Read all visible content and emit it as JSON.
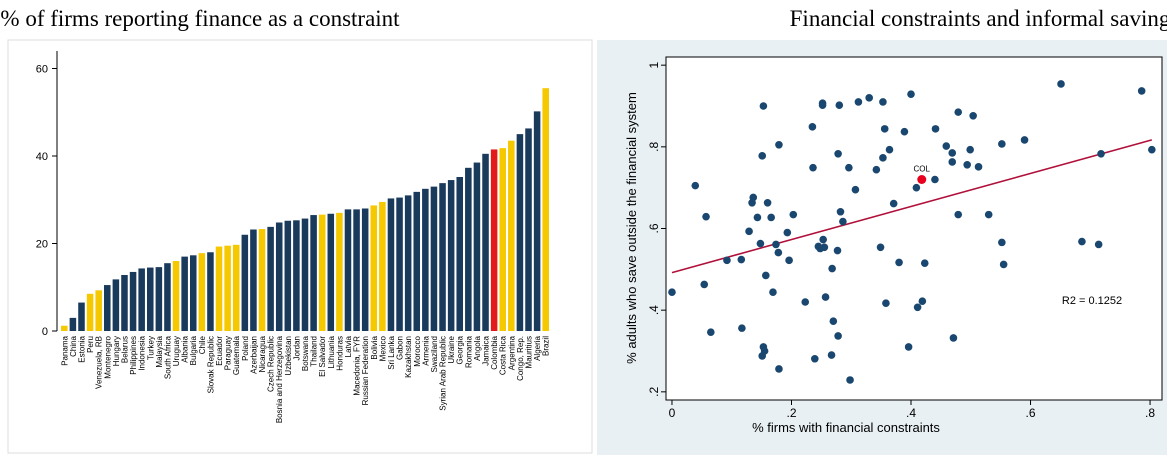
{
  "chart_data": [
    {
      "type": "bar",
      "title": "% of firms reporting finance as a constraint",
      "categories": [
        "Panama",
        "China",
        "Estonia",
        "Peru",
        "Venezuela, RB",
        "Montenegro",
        "Hungary",
        "Belarus",
        "Philippines",
        "Indonesia",
        "Turkey",
        "Malaysia",
        "South Africa",
        "Uruguay",
        "Albania",
        "Bulgaria",
        "Chile",
        "Slovak Republic",
        "Ecuador",
        "Paraguay",
        "Guatemala",
        "Poland",
        "Azerbaijan",
        "Nicaragua",
        "Czech Republic",
        "Bosnia and Herzegovina",
        "Uzbekistan",
        "Jordan",
        "Botswana",
        "Thailand",
        "El Salvador",
        "Lithuania",
        "Honduras",
        "Latvia",
        "Macedonia, FYR",
        "Russian Federation",
        "Bolivia",
        "Mexico",
        "Sri Lanka",
        "Gabon",
        "Kazakhstan",
        "Morocco",
        "Armenia",
        "Swaziland",
        "Syrian Arab Republic",
        "Ukraine",
        "Georgia",
        "Romania",
        "Angola",
        "Jamaica",
        "Colombia",
        "Costa Rica",
        "Argentina",
        "Congo, Rep.",
        "Mauritius",
        "Algeria",
        "Brazil"
      ],
      "values": [
        1.2,
        3,
        6.5,
        8.5,
        9.3,
        10.5,
        11.8,
        12.8,
        13.5,
        14.3,
        14.5,
        14.6,
        15.5,
        16,
        17,
        17.3,
        17.8,
        18,
        19.3,
        19.5,
        19.7,
        22,
        23.2,
        23.3,
        23.8,
        24.8,
        25.2,
        25.3,
        25.7,
        26.5,
        26.6,
        26.8,
        27,
        27.8,
        27.8,
        28,
        28.7,
        29.5,
        30.3,
        30.5,
        31,
        31.8,
        32.5,
        33,
        33.8,
        34.5,
        35.2,
        37.3,
        38.5,
        40.5,
        41.5,
        41.8,
        43.5,
        45,
        46.3,
        50.2,
        55.5
      ],
      "colors": [
        "#f5c800",
        "#1a3a5c",
        "#1a3a5c",
        "#f5c800",
        "#f5c800",
        "#1a3a5c",
        "#1a3a5c",
        "#1a3a5c",
        "#1a3a5c",
        "#1a3a5c",
        "#1a3a5c",
        "#1a3a5c",
        "#1a3a5c",
        "#f5c800",
        "#1a3a5c",
        "#1a3a5c",
        "#f5c800",
        "#1a3a5c",
        "#f5c800",
        "#f5c800",
        "#f5c800",
        "#1a3a5c",
        "#1a3a5c",
        "#f5c800",
        "#1a3a5c",
        "#1a3a5c",
        "#1a3a5c",
        "#1a3a5c",
        "#1a3a5c",
        "#1a3a5c",
        "#f5c800",
        "#1a3a5c",
        "#f5c800",
        "#1a3a5c",
        "#1a3a5c",
        "#1a3a5c",
        "#f5c800",
        "#f5c800",
        "#1a3a5c",
        "#1a3a5c",
        "#1a3a5c",
        "#1a3a5c",
        "#1a3a5c",
        "#1a3a5c",
        "#1a3a5c",
        "#1a3a5c",
        "#1a3a5c",
        "#1a3a5c",
        "#1a3a5c",
        "#1a3a5c",
        "#e31a1c",
        "#f5c800",
        "#f5c800",
        "#1a3a5c",
        "#1a3a5c",
        "#1a3a5c",
        "#f5c800"
      ],
      "ylim": [
        0,
        64
      ],
      "yticks": [
        0,
        20,
        40,
        60
      ]
    },
    {
      "type": "scatter",
      "title": "Financial constraints and informal saving",
      "x_label": "% firms with financial constraints",
      "y_label": "% adults who save outside the financial system",
      "series": [
        {
          "color": "#1a476f",
          "x": [
            0,
            0.054,
            0.065,
            0.039,
            0.092,
            0.057,
            0.116,
            0.117,
            0.129,
            0.134,
            0.136,
            0.143,
            0.151,
            0.148,
            0.153,
            0.155,
            0.151,
            0.153,
            0.157,
            0.16,
            0.166,
            0.169,
            0.174,
            0.178,
            0.179,
            0.179,
            0.193,
            0.196,
            0.203,
            0.223,
            0.235,
            0.236,
            0.239,
            0.245,
            0.248,
            0.252,
            0.252,
            0.253,
            0.255,
            0.257,
            0.267,
            0.268,
            0.27,
            0.277,
            0.278,
            0.28,
            0.278,
            0.282,
            0.286,
            0.296,
            0.298,
            0.307,
            0.312,
            0.33,
            0.342,
            0.349,
            0.353,
            0.358,
            0.356,
            0.364,
            0.353,
            0.371,
            0.38,
            0.389,
            0.396,
            0.4,
            0.409,
            0.411,
            0.419,
            0.423,
            0.44,
            0.441,
            0.459,
            0.469,
            0.471,
            0.469,
            0.479,
            0.479,
            0.494,
            0.499,
            0.504,
            0.513,
            0.53,
            0.552,
            0.555,
            0.552,
            0.59,
            0.651,
            0.686,
            0.714,
            0.718,
            0.786,
            0.803
          ],
          "values": [
            0.444,
            0.463,
            0.346,
            0.705,
            0.522,
            0.629,
            0.524,
            0.356,
            0.593,
            0.663,
            0.676,
            0.627,
            0.778,
            0.563,
            0.31,
            0.3,
            0.288,
            0.9,
            0.485,
            0.663,
            0.627,
            0.444,
            0.561,
            0.541,
            0.256,
            0.805,
            0.59,
            0.522,
            0.634,
            0.42,
            0.849,
            0.749,
            0.281,
            0.556,
            0.551,
            0.907,
            0.902,
            0.573,
            0.554,
            0.432,
            0.29,
            0.502,
            0.373,
            0.546,
            0.337,
            0.902,
            0.783,
            0.641,
            0.617,
            0.749,
            0.229,
            0.695,
            0.91,
            0.92,
            0.744,
            0.554,
            0.91,
            0.417,
            0.844,
            0.793,
            0.773,
            0.661,
            0.517,
            0.837,
            0.31,
            0.929,
            0.7,
            0.407,
            0.422,
            0.515,
            0.72,
            0.844,
            0.802,
            0.785,
            0.332,
            0.763,
            0.885,
            0.634,
            0.756,
            0.793,
            0.876,
            0.751,
            0.634,
            0.566,
            0.512,
            0.807,
            0.817,
            0.954,
            0.568,
            0.561,
            0.783,
            0.937,
            0.793
          ]
        },
        {
          "name": "COL",
          "color": "#e8001c",
          "x": [
            0.418
          ],
          "values": [
            0.72
          ]
        }
      ],
      "fit_line": {
        "color": "#b0103a",
        "x": [
          0,
          0.803
        ],
        "y": [
          0.492,
          0.817
        ]
      },
      "annotation": "R2 = 0.1252",
      "xlim": [
        -0.01,
        0.82
      ],
      "ylim": [
        0.18,
        1.02
      ],
      "xticks": [
        0,
        {
          "value": 0.2,
          "label": ".2"
        },
        {
          "value": 0.4,
          "label": ".4"
        },
        {
          "value": 0.6,
          "label": ".6"
        },
        {
          "value": 0.8,
          "label": ".8"
        }
      ],
      "yticks": [
        {
          "value": 0.2,
          "label": ".2"
        },
        {
          "value": 0.4,
          "label": ".4"
        },
        {
          "value": 0.6,
          "label": ".6"
        },
        {
          "value": 0.8,
          "label": ".8"
        },
        1
      ]
    }
  ]
}
